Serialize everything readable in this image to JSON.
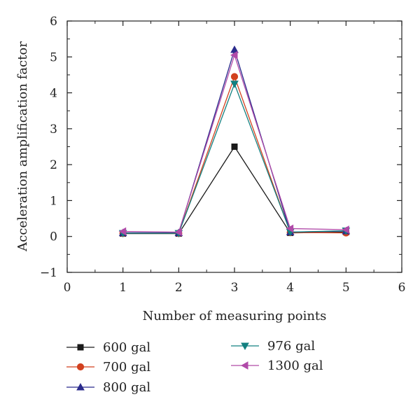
{
  "chart_data": {
    "type": "line",
    "xlabel": "Number of measuring points",
    "ylabel": "Acceleration amplification factor",
    "xlim": [
      0,
      6
    ],
    "ylim": [
      -1,
      6
    ],
    "xticks": [
      "0",
      "1",
      "2",
      "3",
      "4",
      "5",
      "6"
    ],
    "yticks": [
      "−1",
      "0",
      "1",
      "2",
      "3",
      "4",
      "5",
      "6"
    ],
    "x": [
      1,
      2,
      3,
      4,
      5
    ],
    "grid": false,
    "legend_position": "below",
    "series": [
      {
        "name": "600 gal",
        "color": "#1a1a1a",
        "marker": "square",
        "values": [
          0.08,
          0.08,
          2.5,
          0.1,
          0.12
        ]
      },
      {
        "name": "700 gal",
        "color": "#d2411f",
        "marker": "circle",
        "values": [
          0.09,
          0.09,
          4.45,
          0.11,
          0.1
        ]
      },
      {
        "name": "800 gal",
        "color": "#2b2b8c",
        "marker": "triangle-up",
        "values": [
          0.1,
          0.1,
          5.2,
          0.12,
          0.15
        ]
      },
      {
        "name": "976 gal",
        "color": "#138080",
        "marker": "triangle-down",
        "values": [
          0.09,
          0.09,
          4.25,
          0.12,
          0.16
        ]
      },
      {
        "name": "1300 gal",
        "color": "#b04aa8",
        "marker": "triangle-left",
        "values": [
          0.14,
          0.12,
          5.05,
          0.22,
          0.19
        ]
      }
    ]
  }
}
